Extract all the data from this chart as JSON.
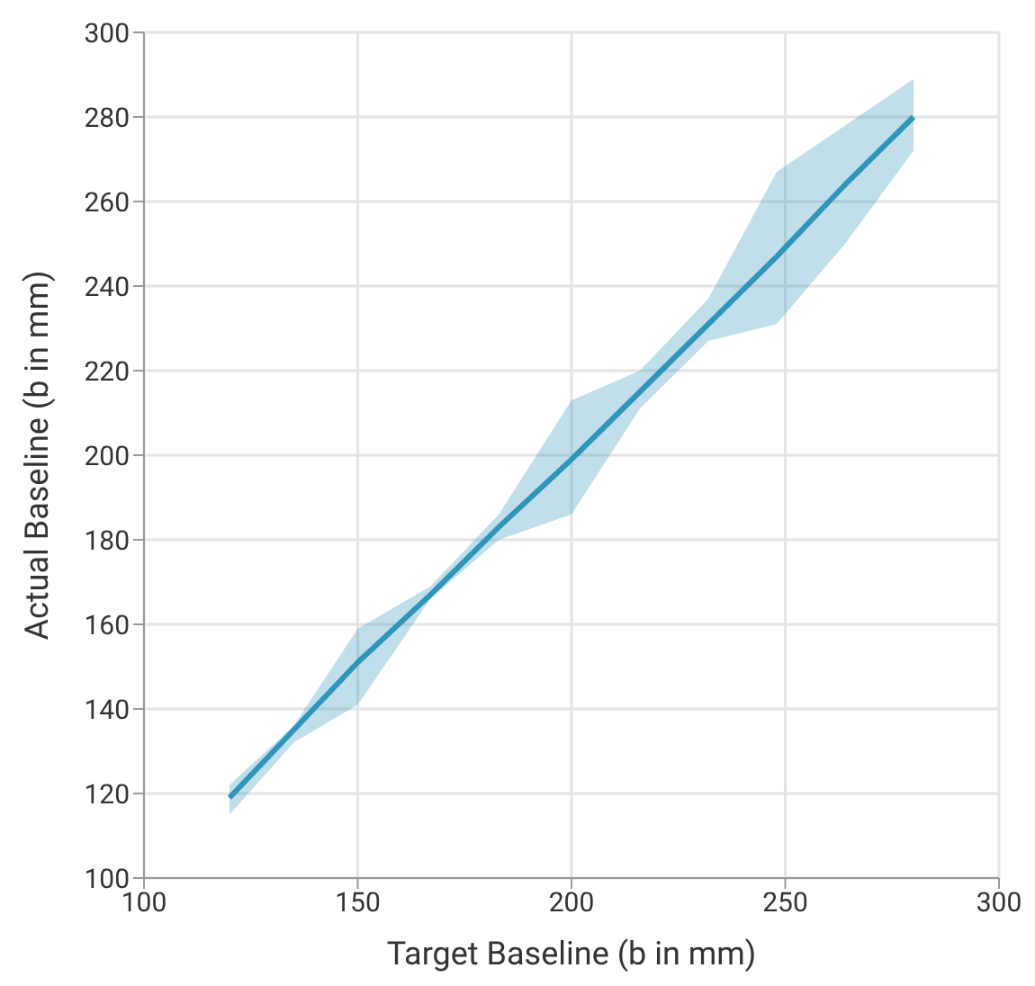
{
  "chart_data": {
    "type": "line",
    "xlabel": "Target Baseline (b in mm)",
    "ylabel": "Actual Baseline (b in mm)",
    "x": [
      120,
      135,
      150,
      167,
      183,
      200,
      216,
      232,
      248,
      264,
      280
    ],
    "series": [
      {
        "color": "#2e94b9",
        "values": [
          119,
          135,
          151,
          167,
          183,
          199,
          215,
          231,
          247,
          264,
          280
        ],
        "lower": [
          115,
          132,
          141,
          166,
          180,
          186,
          211,
          227,
          231,
          250,
          272
        ],
        "upper": [
          122,
          136,
          159,
          169,
          186,
          213,
          220,
          237,
          267,
          278,
          289
        ]
      }
    ],
    "xlim": [
      100,
      300
    ],
    "xticks": [
      100,
      150,
      200,
      250,
      300
    ],
    "ylim": [
      100,
      300
    ],
    "yticks": [
      100,
      120,
      140,
      160,
      180,
      200,
      220,
      240,
      260,
      280,
      300
    ],
    "grid": true,
    "marker": "none",
    "line_style": "solid"
  }
}
